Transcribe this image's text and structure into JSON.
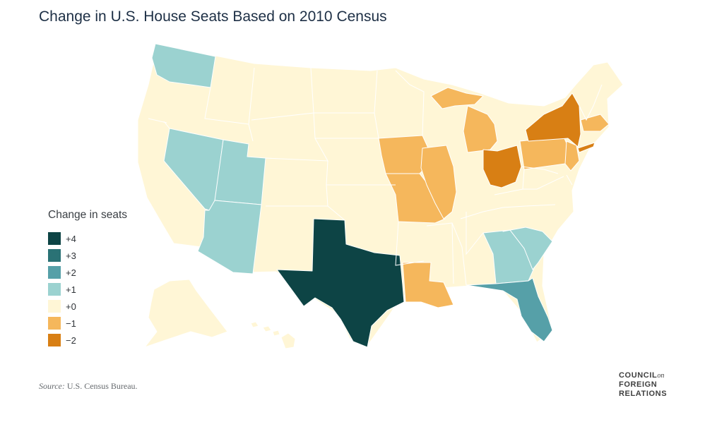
{
  "title": "Change in U.S. House Seats Based on 2010 Census",
  "legend": {
    "title": "Change in seats",
    "items": [
      {
        "label": "+4",
        "color": "#0d4445"
      },
      {
        "label": "+3",
        "color": "#2a7275"
      },
      {
        "label": "+2",
        "color": "#56a0a8"
      },
      {
        "label": "+1",
        "color": "#9bd2d0"
      },
      {
        "label": "+0",
        "color": "#fff6d6"
      },
      {
        "label": "−1",
        "color": "#f5b75c"
      },
      {
        "label": "−2",
        "color": "#d87f14"
      }
    ]
  },
  "states": {
    "+4": [
      "Texas"
    ],
    "+2": [
      "Florida"
    ],
    "+1": [
      "Washington",
      "Nevada",
      "Utah",
      "Arizona",
      "Georgia",
      "South Carolina"
    ],
    "-1": [
      "Iowa",
      "Missouri",
      "Illinois",
      "Michigan",
      "Louisiana",
      "Pennsylvania",
      "New Jersey",
      "Massachusetts"
    ],
    "-2": [
      "New York",
      "Ohio"
    ]
  },
  "source": {
    "label": "Source:",
    "text": "U.S. Census Bureau."
  },
  "logo": {
    "line1": "COUNCIL",
    "line1_suffix": "on",
    "line2": "FOREIGN",
    "line3": "RELATIONS"
  }
}
